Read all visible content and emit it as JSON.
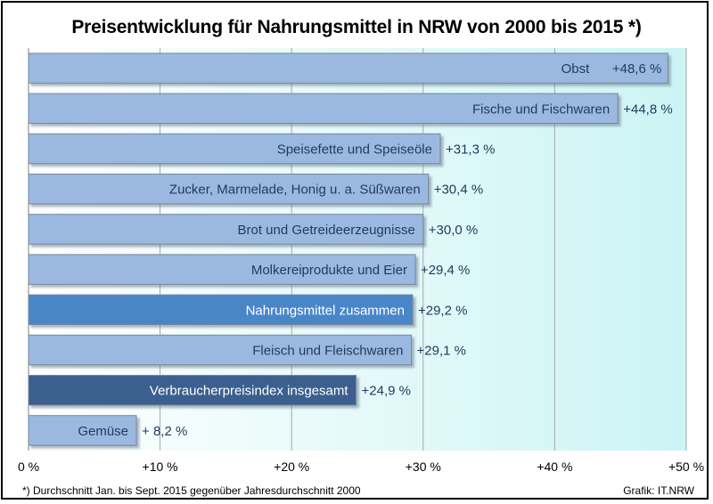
{
  "chart_data": {
    "type": "bar",
    "orientation": "horizontal",
    "title": "Preisentwicklung für Nahrungsmittel in NRW von 2000 bis 2015 *)",
    "unit": "%",
    "xlim": [
      0,
      50
    ],
    "grid": true,
    "categories": [
      "Obst",
      "Fische und Fischwaren",
      "Speisefette und Speiseöle",
      "Zucker, Marmelade, Honig u. a. Süßwaren",
      "Brot und Getreideerzeugnisse",
      "Molkereiprodukte  und Eier",
      "Nahrungsmittel zusammen",
      "Fleisch und Fleischwaren",
      "Verbraucherpreisindex insgesamt",
      "Gemüse"
    ],
    "values": [
      48.6,
      44.8,
      31.3,
      30.4,
      30.0,
      29.4,
      29.2,
      29.1,
      24.9,
      8.2
    ],
    "value_labels": [
      "+48,6 %",
      "+44,8 %",
      "+31,3 %",
      "+30,4 %",
      "+30,0 %",
      "+29,4 %",
      "+29,2 %",
      "+29,1 %",
      "+24,9 %",
      "+ 8,2 %"
    ],
    "highlight": {
      "Nahrungsmittel zusammen": "#4a86c8",
      "Verbraucherpreisindex insgesamt": "#3a5f8e"
    },
    "bar_color": "#9bb9e0",
    "value_label_inside": [
      true,
      false,
      false,
      false,
      false,
      false,
      false,
      false,
      false,
      false
    ],
    "x_tick_labels": [
      "0 %",
      "+10 %",
      "+20 %",
      "+30 %",
      "+40 %",
      "+50 %"
    ],
    "x_ticks": [
      0,
      10,
      20,
      30,
      40,
      50
    ],
    "footnote": "*) Durchschnitt Jan. bis Sept. 2015 gegenüber Jahresdurchschnitt 2000",
    "credit": "Grafik: IT.NRW"
  }
}
